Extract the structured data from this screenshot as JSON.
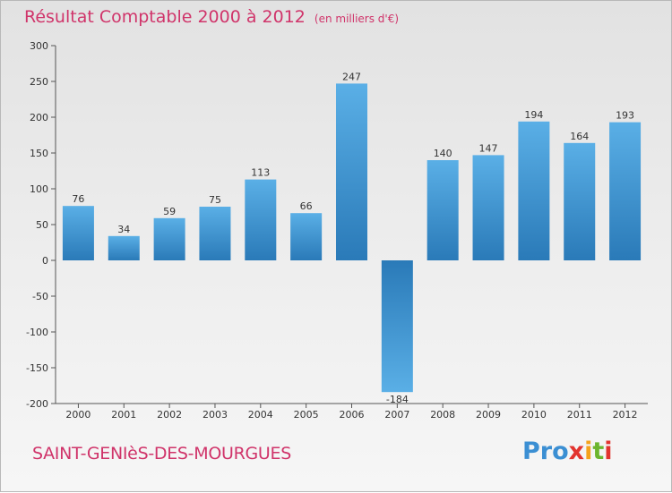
{
  "header": {
    "title": "Résultat Comptable 2000 à 2012",
    "unit": "(en milliers d'€)"
  },
  "footer": {
    "commune": "SAINT-GENIèS-DES-MOURGUES",
    "logo": [
      "Pro",
      "x",
      "i",
      "t",
      "i"
    ]
  },
  "colors": {
    "bar_dark": "#2a7ab8",
    "bar_light": "#5aafe6",
    "title": "#d0346a"
  },
  "chart_data": {
    "type": "bar",
    "title": "Résultat Comptable 2000 à 2012",
    "ylabel": "(en milliers d'€)",
    "xlabel": "",
    "categories": [
      "2000",
      "2001",
      "2002",
      "2003",
      "2004",
      "2005",
      "2006",
      "2007",
      "2008",
      "2009",
      "2010",
      "2011",
      "2012"
    ],
    "values": [
      76,
      34,
      59,
      75,
      113,
      66,
      247,
      -184,
      140,
      147,
      194,
      164,
      193
    ],
    "ylim": [
      -200,
      300
    ],
    "yticks": [
      300,
      250,
      200,
      150,
      100,
      50,
      0,
      -50,
      -100,
      -150,
      -200
    ],
    "grid": false,
    "legend": "none"
  }
}
